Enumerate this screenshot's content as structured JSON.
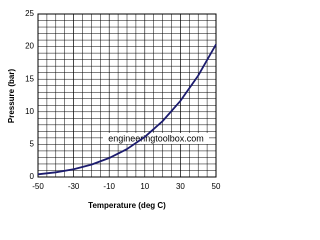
{
  "chart_data": {
    "type": "line",
    "x_label": "Temperature (deg C)",
    "y_label": "Pressure (bar)",
    "annotation": "engineeringtoolbox.com",
    "x": [
      -50,
      -40,
      -30,
      -20,
      -10,
      0,
      10,
      20,
      30,
      40,
      50
    ],
    "series": [
      {
        "color": "#1c1c6e",
        "values": [
          0.41,
          0.72,
          1.19,
          1.9,
          2.91,
          4.29,
          6.15,
          8.57,
          11.67,
          15.55,
          20.33
        ]
      }
    ],
    "xlim": [
      -50,
      50
    ],
    "xticks": [
      -50,
      -30,
      -10,
      10,
      30,
      50
    ],
    "ylim": [
      0,
      25
    ],
    "yticks": [
      0,
      5,
      10,
      15,
      20,
      25
    ],
    "grid": true,
    "x_grid": [
      -45,
      -40,
      -35,
      -30,
      -25,
      -20,
      -15,
      -10,
      -5,
      0,
      5,
      10,
      15,
      20,
      25,
      30,
      35,
      40,
      45
    ],
    "y_grid": [
      1,
      2,
      3,
      4,
      6,
      7,
      8,
      9,
      11,
      12,
      13,
      14,
      16,
      17,
      18,
      19,
      21,
      22,
      23,
      24
    ]
  }
}
